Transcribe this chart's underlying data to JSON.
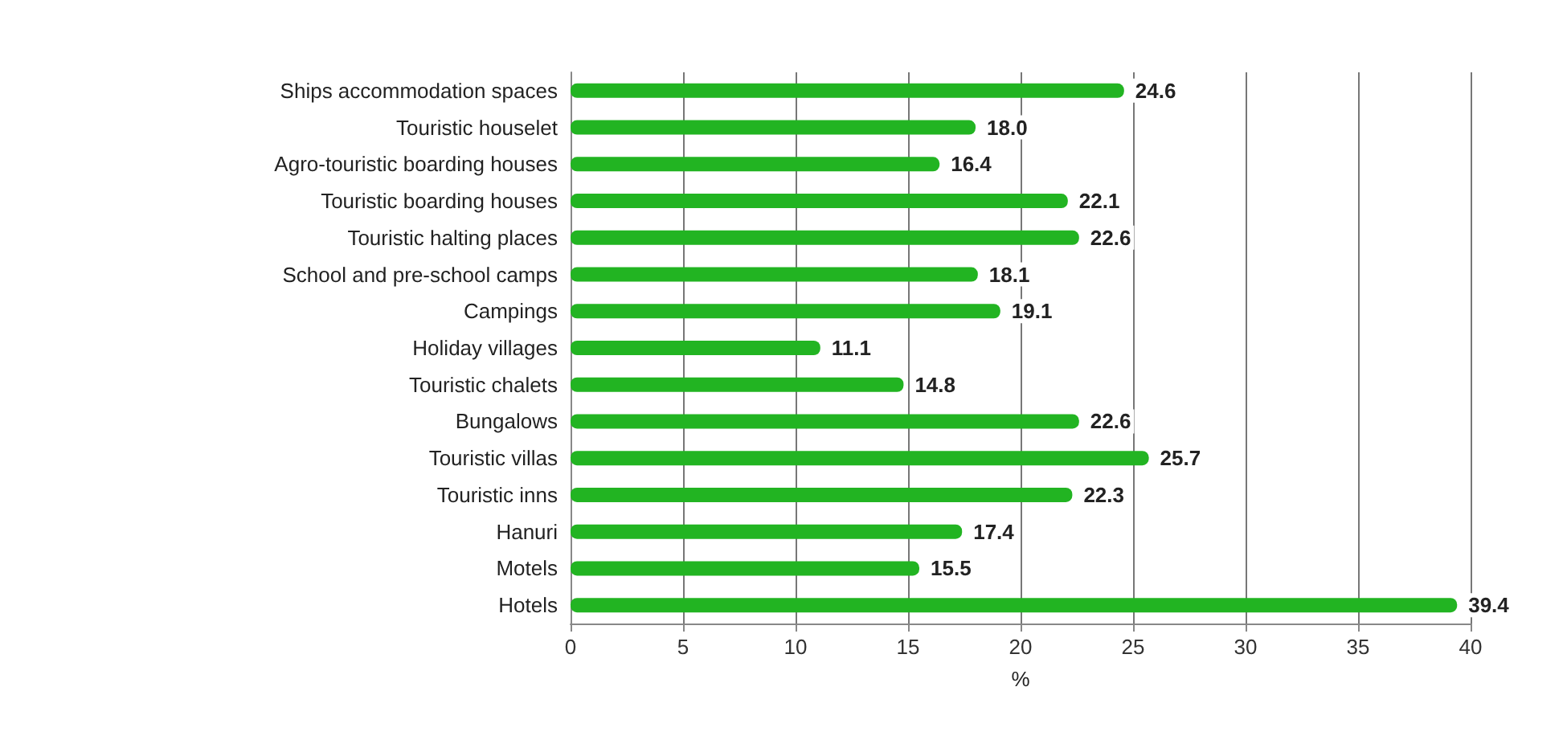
{
  "chart_data": {
    "type": "bar",
    "orientation": "horizontal",
    "xlabel": "%",
    "categories": [
      "Ships accommodation spaces",
      "Touristic houselet",
      "Agro-touristic boarding houses",
      "Touristic boarding houses",
      "Touristic halting places",
      "School and pre-school camps",
      "Campings",
      "Holiday villages",
      "Touristic chalets",
      "Bungalows",
      "Touristic villas",
      "Touristic inns",
      "Hanuri",
      "Motels",
      "Hotels"
    ],
    "values": [
      24.6,
      18.0,
      16.4,
      22.1,
      22.6,
      18.1,
      19.1,
      11.1,
      14.8,
      22.6,
      25.7,
      22.3,
      17.4,
      15.5,
      39.4
    ],
    "value_labels": [
      "24.6",
      "18.0",
      "16.4",
      "22.1",
      "22.6",
      "18.1",
      "19.1",
      "11.1",
      "14.8",
      "22.6",
      "25.7",
      "22.3",
      "17.4",
      "15.5",
      "39.4"
    ],
    "color": "#22b422",
    "xlim": [
      0,
      40
    ],
    "xticks": [
      0,
      5,
      10,
      15,
      20,
      25,
      30,
      35,
      40
    ],
    "grid": "x"
  }
}
